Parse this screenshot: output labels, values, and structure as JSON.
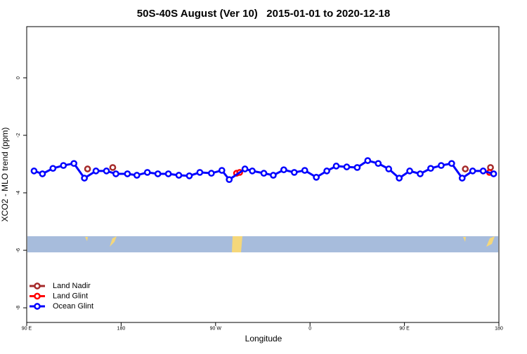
{
  "chart_data": {
    "type": "line",
    "title": "50S-40S August (Ver 10)   2015-01-01 to 2020-12-18",
    "x_label": "Longitude",
    "y_label": "XCO2 - MLO trend (ppm)",
    "xlim": [
      90,
      540
    ],
    "ylim": [
      1.78,
      -8.51
    ],
    "xticks": [
      {
        "value": 90,
        "label": "90 E"
      },
      {
        "value": 180,
        "label": "180"
      },
      {
        "value": 270,
        "label": "90 W"
      },
      {
        "value": 360,
        "label": "0"
      },
      {
        "value": 450,
        "label": "90 E"
      },
      {
        "value": 540,
        "label": "180"
      }
    ],
    "yticks": [
      0,
      -2,
      -4,
      -6,
      -8
    ],
    "legend": "bottom-left",
    "series": [
      {
        "name": "Land Nadir",
        "color": "#a52a2a",
        "line": false,
        "x": [
          148,
          172,
          508,
          532
        ],
        "values": [
          -3.17,
          -3.12,
          -3.17,
          -3.12
        ]
      },
      {
        "name": "Land Glint",
        "color": "#ff0000",
        "line": true,
        "x": [
          290,
          293,
          410,
          531
        ],
        "values": [
          -3.32,
          -3.29,
          null,
          -3.29
        ]
      },
      {
        "name": "Ocean Glint",
        "color": "#0000ff",
        "line": true,
        "x": [
          97,
          105,
          115,
          125,
          135,
          145,
          156,
          166,
          175,
          186,
          195,
          205,
          215,
          225,
          235,
          245,
          255,
          266,
          276,
          283,
          298,
          305,
          316,
          325,
          335,
          345,
          355,
          366,
          376,
          385,
          395,
          405,
          415,
          425,
          435,
          445,
          455,
          465,
          475,
          485,
          495,
          505,
          515,
          525,
          535
        ],
        "values": [
          -3.24,
          -3.34,
          -3.15,
          -3.05,
          -2.98,
          -3.49,
          -3.24,
          -3.24,
          -3.34,
          -3.34,
          -3.39,
          -3.29,
          -3.34,
          -3.34,
          -3.39,
          -3.41,
          -3.29,
          -3.32,
          -3.22,
          -3.54,
          -3.17,
          -3.24,
          -3.32,
          -3.39,
          -3.2,
          -3.29,
          -3.22,
          -3.46,
          -3.24,
          -3.07,
          -3.1,
          -3.12,
          -2.88,
          -2.98,
          -3.17,
          -3.49,
          -3.24,
          -3.34,
          -3.15,
          -3.05,
          -2.98,
          -3.49,
          -3.24,
          -3.24,
          -3.34
        ]
      }
    ]
  }
}
